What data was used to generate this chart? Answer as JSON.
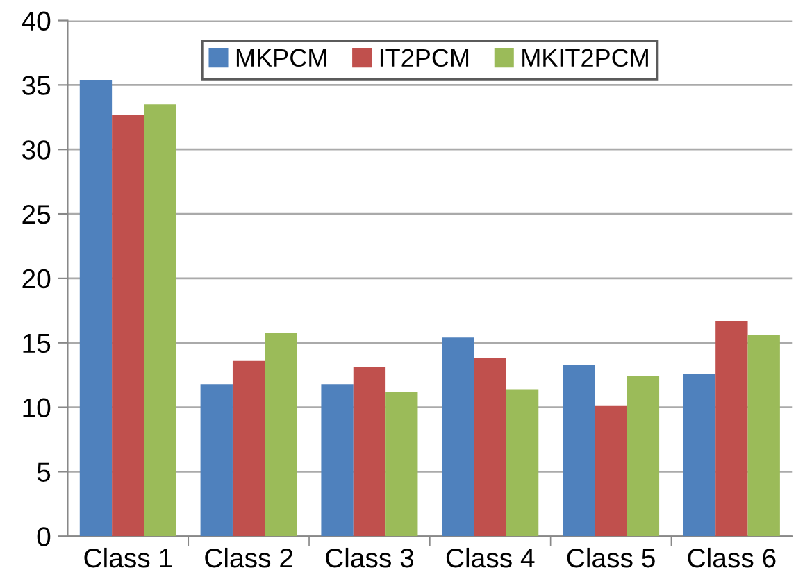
{
  "chart_data": {
    "type": "bar",
    "categories": [
      "Class 1",
      "Class 2",
      "Class 3",
      "Class 4",
      "Class 5",
      "Class 6"
    ],
    "series": [
      {
        "name": "MKPCM",
        "color": "#4f81bd",
        "values": [
          35.4,
          11.8,
          11.8,
          15.4,
          13.3,
          12.6
        ]
      },
      {
        "name": "IT2PCM",
        "color": "#c0504d",
        "values": [
          32.7,
          13.6,
          13.1,
          13.8,
          10.1,
          16.7
        ]
      },
      {
        "name": "MKIT2PCM",
        "color": "#9bbb59",
        "values": [
          33.5,
          15.8,
          11.2,
          11.4,
          12.4,
          15.6
        ]
      }
    ],
    "ylim": [
      0,
      40
    ],
    "yticks": [
      0,
      5,
      10,
      15,
      20,
      25,
      30,
      35,
      40
    ],
    "grid": "y",
    "legend": "top"
  }
}
